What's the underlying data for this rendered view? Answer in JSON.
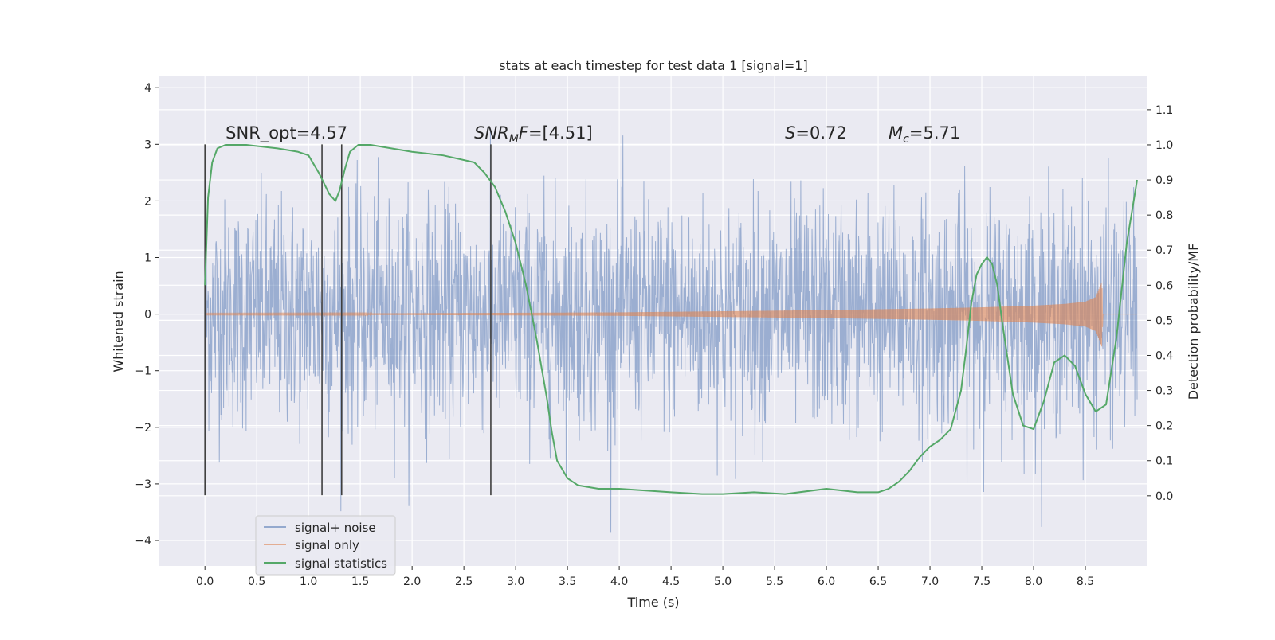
{
  "chart_data": {
    "type": "line",
    "title": "stats at each timestep for test data 1 [signal=1]",
    "xlabel": "Time (s)",
    "ylabel_left": "Whitened strain",
    "ylabel_right": "Detection probability/MF",
    "xlim": [
      -0.44,
      9.1
    ],
    "ylim_left": [
      -4.45,
      4.2
    ],
    "ylim_right": [
      -0.2,
      1.195
    ],
    "x_ticks": [
      "0.0",
      "0.5",
      "1.0",
      "1.5",
      "2.0",
      "2.5",
      "3.0",
      "3.5",
      "4.0",
      "4.5",
      "5.0",
      "5.5",
      "6.0",
      "6.5",
      "7.0",
      "7.5",
      "8.0",
      "8.5"
    ],
    "y_ticks_left": [
      "4",
      "3",
      "2",
      "1",
      "0",
      "−1",
      "−2",
      "−3",
      "−4"
    ],
    "y_ticks_right": [
      "1.1",
      "1.0",
      "0.9",
      "0.8",
      "0.7",
      "0.6",
      "0.5",
      "0.4",
      "0.3",
      "0.2",
      "0.1",
      "0.0"
    ],
    "grid": true,
    "legend_position": "lower-left",
    "series": [
      {
        "name": "signal+ noise",
        "color": "#4c72b0",
        "axis": "left",
        "x_range": [
          0.0,
          9.0
        ],
        "approx_envelope": [
          -2.0,
          2.0
        ],
        "approx_extremes": [
          -3.85,
          3.85
        ]
      },
      {
        "name": "signal only",
        "color": "#dd8452",
        "axis": "left",
        "x_range": [
          0.0,
          8.67
        ],
        "envelope": {
          "x": [
            0.0,
            2.0,
            4.0,
            5.0,
            6.0,
            7.0,
            7.5,
            8.0,
            8.3,
            8.5,
            8.6,
            8.66,
            8.67
          ],
          "amplitude": [
            0.01,
            0.015,
            0.03,
            0.05,
            0.07,
            0.1,
            0.12,
            0.15,
            0.18,
            0.22,
            0.3,
            0.58,
            0.0
          ]
        }
      },
      {
        "name": "signal statistics",
        "color": "#55a868",
        "axis": "right",
        "x": [
          0.0,
          0.03,
          0.07,
          0.12,
          0.2,
          0.4,
          0.7,
          0.9,
          1.0,
          1.1,
          1.2,
          1.26,
          1.3,
          1.35,
          1.4,
          1.48,
          1.6,
          1.8,
          2.0,
          2.3,
          2.6,
          2.7,
          2.8,
          2.9,
          3.0,
          3.1,
          3.2,
          3.3,
          3.35,
          3.4,
          3.5,
          3.6,
          3.8,
          4.0,
          4.5,
          4.8,
          5.0,
          5.3,
          5.6,
          6.0,
          6.3,
          6.5,
          6.6,
          6.7,
          6.8,
          6.9,
          7.0,
          7.1,
          7.2,
          7.3,
          7.35,
          7.4,
          7.45,
          7.5,
          7.55,
          7.6,
          7.65,
          7.7,
          7.8,
          7.9,
          8.0,
          8.1,
          8.2,
          8.3,
          8.4,
          8.5,
          8.6,
          8.7,
          8.8,
          8.9,
          9.0
        ],
        "y": [
          0.6,
          0.85,
          0.95,
          0.99,
          1.0,
          1.0,
          0.99,
          0.98,
          0.97,
          0.92,
          0.86,
          0.84,
          0.87,
          0.93,
          0.98,
          1.0,
          1.0,
          0.99,
          0.98,
          0.97,
          0.95,
          0.92,
          0.88,
          0.81,
          0.72,
          0.6,
          0.45,
          0.28,
          0.18,
          0.1,
          0.05,
          0.03,
          0.02,
          0.02,
          0.01,
          0.005,
          0.005,
          0.01,
          0.005,
          0.02,
          0.01,
          0.01,
          0.02,
          0.04,
          0.07,
          0.11,
          0.14,
          0.16,
          0.19,
          0.3,
          0.42,
          0.55,
          0.63,
          0.66,
          0.68,
          0.66,
          0.6,
          0.49,
          0.29,
          0.2,
          0.19,
          0.27,
          0.38,
          0.4,
          0.37,
          0.29,
          0.24,
          0.26,
          0.45,
          0.72,
          0.9
        ]
      }
    ],
    "vertical_lines": {
      "color": "#3f3f3f",
      "x": [
        0.0,
        1.13,
        1.32,
        2.76
      ],
      "y_top": [
        3.0,
        3.0,
        3.0,
        3.0
      ],
      "y_bottom": [
        -3.2,
        -3.2,
        -3.2,
        -3.2
      ]
    },
    "annotations": [
      {
        "id": "snr-opt",
        "text": "SNR_opt=4.57",
        "x": 0.2,
        "y": 3.1
      },
      {
        "id": "snr-mf",
        "text": "SNR_MF=[4.51]",
        "x": 2.6,
        "y": 3.1
      },
      {
        "id": "s",
        "text": "S=0.72",
        "x": 5.6,
        "y": 3.1
      },
      {
        "id": "mc",
        "text": "M_c=5.71",
        "x": 6.6,
        "y": 3.1
      }
    ]
  }
}
